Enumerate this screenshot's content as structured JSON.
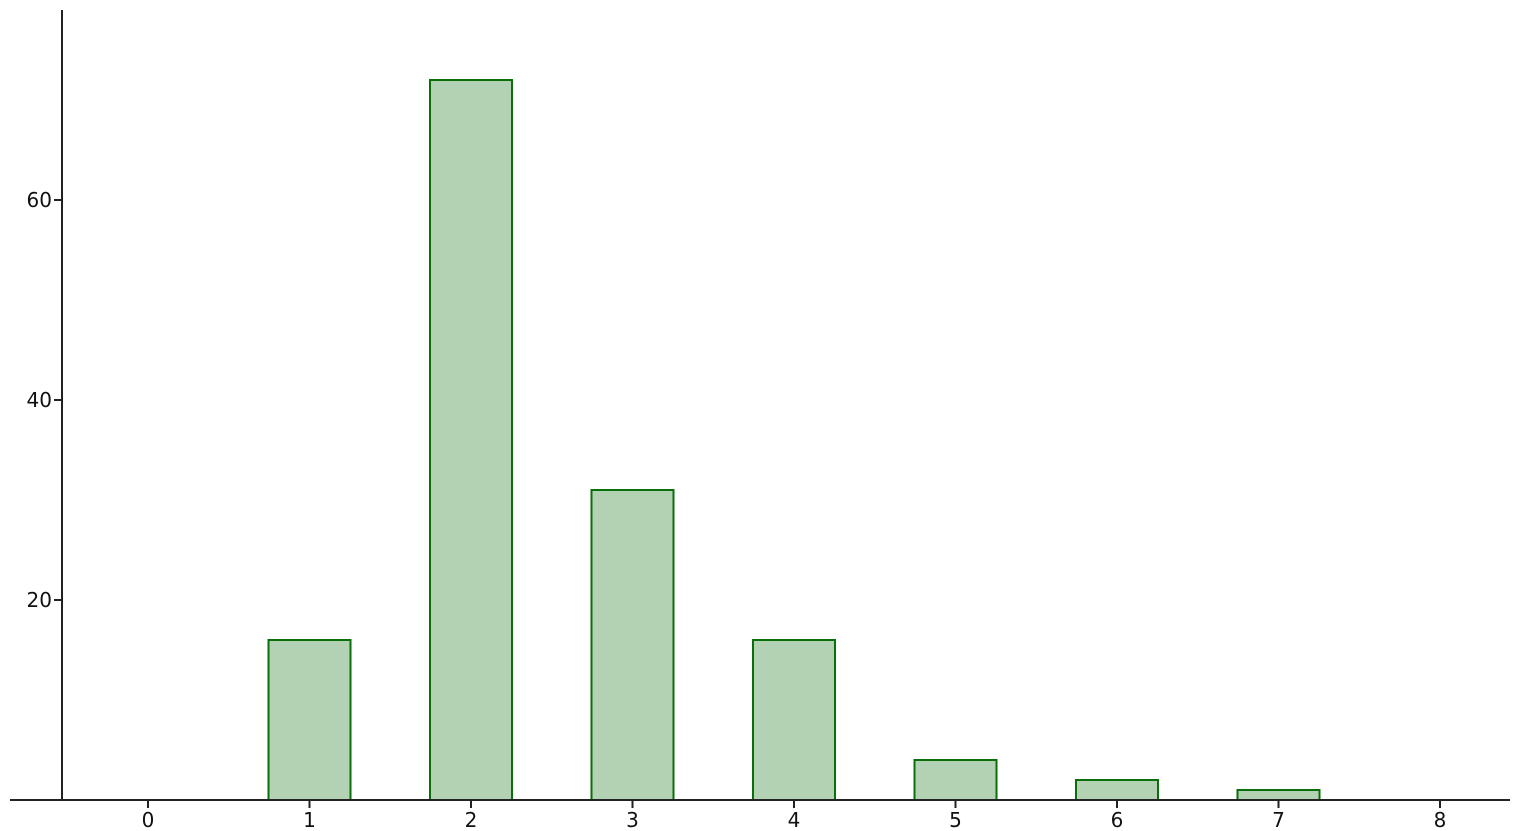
{
  "chart_data": {
    "type": "bar",
    "title": "",
    "xlabel": "",
    "ylabel": "",
    "x": [
      0,
      1,
      2,
      3,
      4,
      5,
      6,
      7,
      8
    ],
    "values": [
      0,
      16,
      72,
      31,
      16,
      4,
      2,
      1,
      0
    ],
    "xlim": [
      -0.5,
      8.4
    ],
    "ylim": [
      0,
      79
    ],
    "x_ticks": [
      "0",
      "1",
      "2",
      "3",
      "4",
      "5",
      "6",
      "7",
      "8"
    ],
    "y_ticks": [
      20,
      40,
      60
    ],
    "y_tick_labels": [
      "20",
      "40",
      "60"
    ],
    "grid": false,
    "legend": "none",
    "colors": {
      "bar_fill": "#b3d1b3",
      "bar_stroke": "#0a6e0a",
      "axis": "#222222"
    }
  }
}
